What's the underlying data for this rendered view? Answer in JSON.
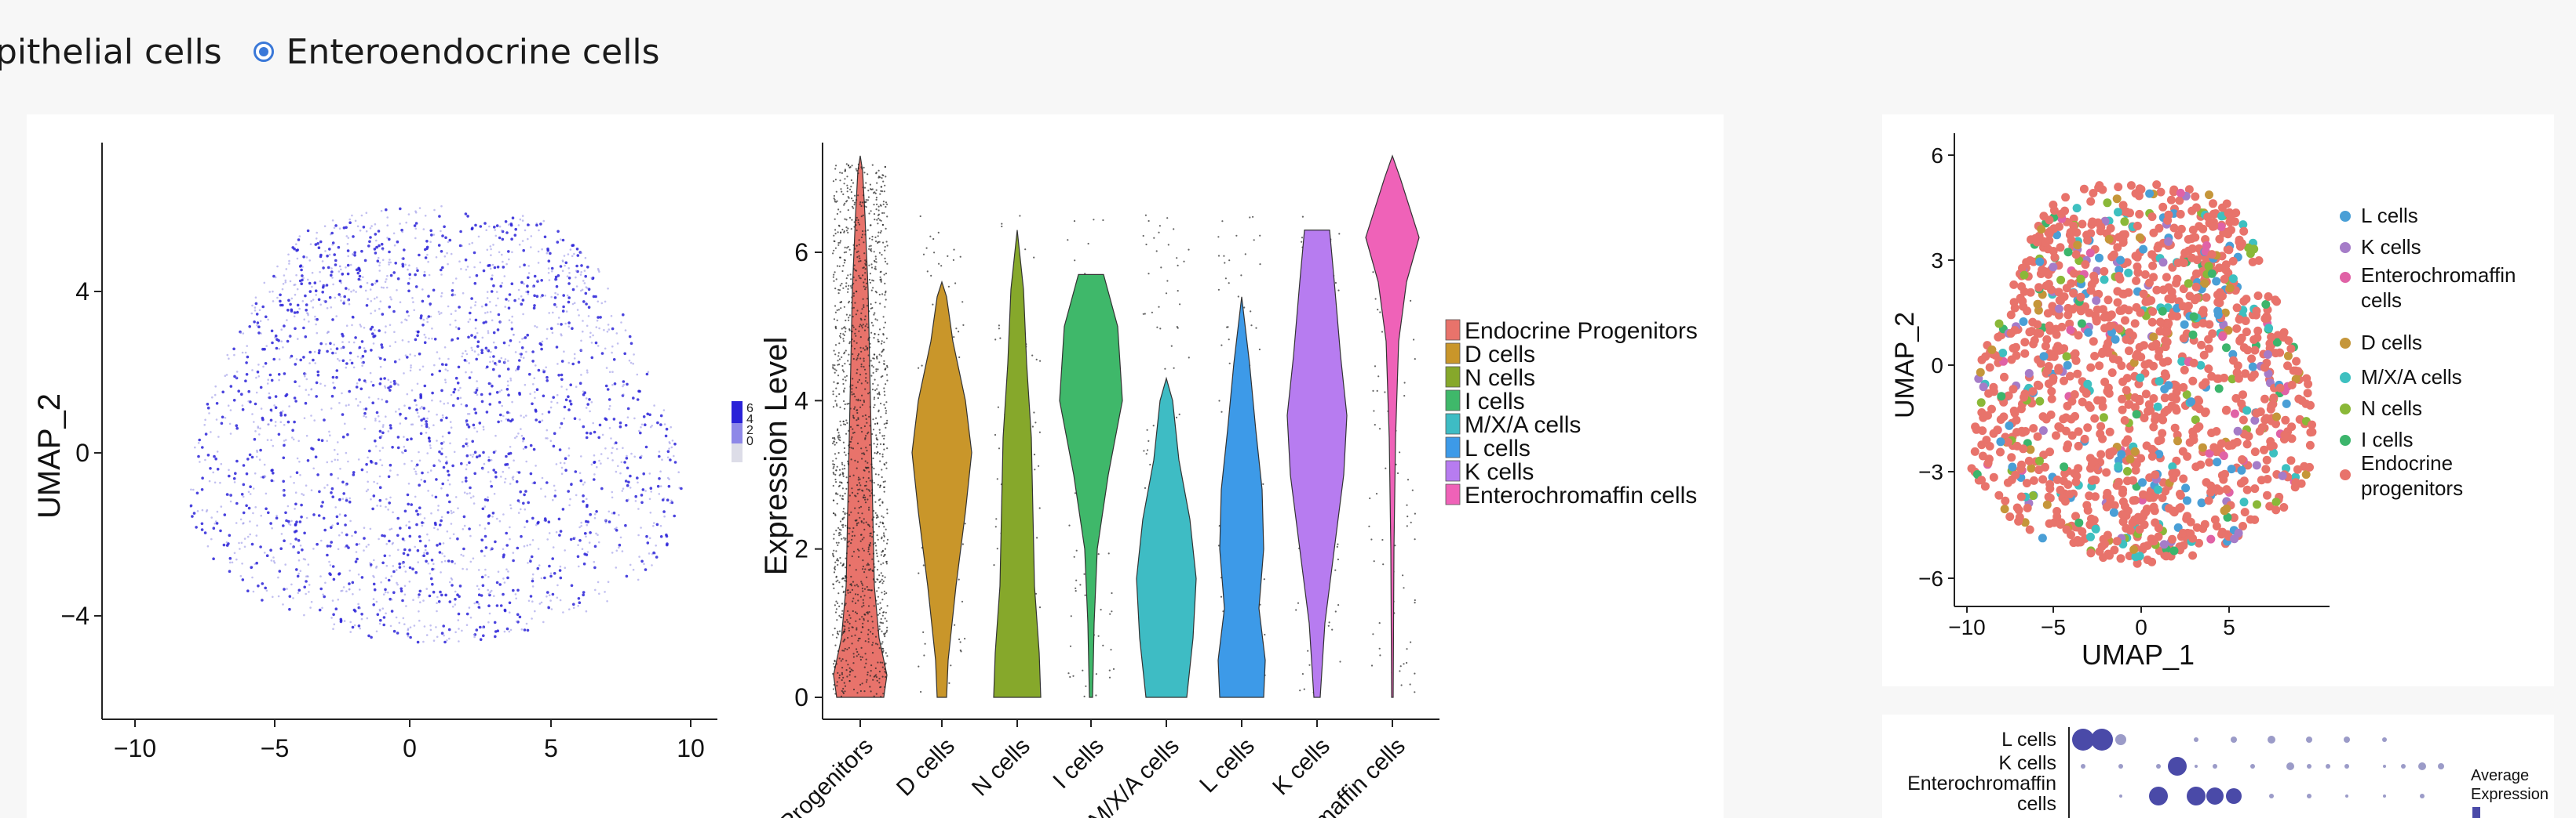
{
  "radio": {
    "option1_label": "pithelial cells",
    "option2_label": "Enteroendocrine cells",
    "selected": "Enteroendocrine cells",
    "accent": "#3a78d8"
  },
  "feature_plot": {
    "ylabel": "UMAP_2",
    "x_ticks": [
      "−10",
      "−5",
      "0",
      "5",
      "10"
    ],
    "y_ticks": [
      "4",
      "0",
      "−4"
    ],
    "scale_ticks": [
      "6",
      "4",
      "2",
      "0"
    ],
    "point_color": "#2a22d8"
  },
  "violin_plot": {
    "ylabel": "Expression Level",
    "y_ticks": [
      "0",
      "2",
      "4",
      "6"
    ],
    "x_labels": [
      "Progenitors",
      "D cells",
      "N cells",
      "I cells",
      "M/X/A cells",
      "L cells",
      "K cells",
      "maffin cells"
    ],
    "legend": [
      "Endocrine Progenitors",
      "D cells",
      "N cells",
      "I cells",
      "M/X/A cells",
      "L cells",
      "K cells",
      "Enterochromaffin cells"
    ],
    "colors": [
      "#e8736b",
      "#c9962a",
      "#86a82b",
      "#3fb86a",
      "#3ebcc4",
      "#3d9ae8",
      "#b77cf0",
      "#ef62b8"
    ]
  },
  "umap_plot": {
    "xlabel": "UMAP_1",
    "ylabel": "UMAP_2",
    "x_ticks": [
      "−10",
      "−5",
      "0",
      "5"
    ],
    "y_ticks": [
      "6",
      "3",
      "0",
      "−3",
      "−6"
    ],
    "legend": [
      {
        "label": "L cells",
        "color": "#4a9fd6"
      },
      {
        "label": "K cells",
        "color": "#a57cc8"
      },
      {
        "label": "Enterochromaffin cells",
        "color": "#e062a6"
      },
      {
        "label": "D cells",
        "color": "#c5963a"
      },
      {
        "label": "M/X/A cells",
        "color": "#3ec0c0"
      },
      {
        "label": "N cells",
        "color": "#8ab838"
      },
      {
        "label": "I cells",
        "color": "#3cb56c"
      },
      {
        "label": "Endocrine progenitors",
        "color": "#e8736b"
      }
    ]
  },
  "dot_plot": {
    "rows": [
      "L cells",
      "K cells",
      "Enterochromaffin cells"
    ],
    "legend_title": "Average Expression",
    "dot_color": "#4a4aa8"
  }
}
